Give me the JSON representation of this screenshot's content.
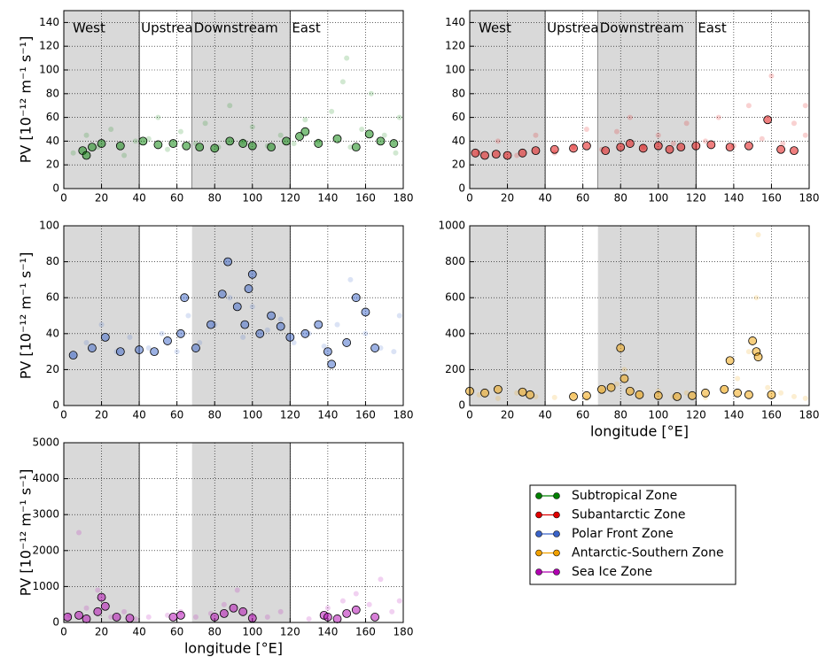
{
  "chart_data": [
    {
      "type": "scatter",
      "ylabel": "PV [10⁻¹² m⁻¹ s⁻¹]",
      "xlim": [
        0,
        180
      ],
      "ylim": [
        0,
        150
      ],
      "xticks": [
        0,
        20,
        40,
        60,
        80,
        100,
        120,
        140,
        160,
        180
      ],
      "yticks": [
        0,
        20,
        40,
        60,
        80,
        100,
        120,
        140
      ],
      "grid": true,
      "regions": [
        {
          "label": "West",
          "xlim": [
            0,
            40
          ],
          "shaded": true
        },
        {
          "label": "Upstream",
          "xlim": [
            40,
            68
          ],
          "shaded": false
        },
        {
          "label": "Downstream",
          "xlim": [
            68,
            120
          ],
          "shaded": true
        },
        {
          "label": "East",
          "xlim": [
            120,
            180
          ],
          "shaded": false
        }
      ],
      "series": [
        {
          "name": "Subtropical Zone",
          "color": "#008000",
          "x": [
            5,
            12,
            18,
            25,
            32,
            38,
            45,
            50,
            55,
            62,
            70,
            75,
            82,
            88,
            95,
            100,
            108,
            115,
            122,
            128,
            135,
            142,
            148,
            152,
            158,
            163,
            170,
            176,
            178,
            150
          ],
          "values": [
            30,
            45,
            35,
            50,
            28,
            40,
            42,
            60,
            33,
            48,
            38,
            55,
            35,
            70,
            40,
            52,
            36,
            45,
            38,
            58,
            40,
            65,
            90,
            35,
            50,
            80,
            45,
            30,
            60,
            110
          ],
          "highlight_x": [
            10,
            12,
            15,
            20,
            30,
            42,
            50,
            58,
            65,
            72,
            80,
            88,
            95,
            100,
            110,
            118,
            125,
            128,
            135,
            145,
            155,
            162,
            168,
            175
          ],
          "highlight_values": [
            32,
            28,
            35,
            38,
            36,
            40,
            37,
            38,
            36,
            35,
            34,
            40,
            38,
            36,
            35,
            40,
            44,
            48,
            38,
            42,
            35,
            46,
            40,
            38
          ]
        }
      ]
    },
    {
      "type": "scatter",
      "xlim": [
        0,
        180
      ],
      "ylim": [
        0,
        150
      ],
      "xticks": [
        0,
        20,
        40,
        60,
        80,
        100,
        120,
        140,
        160,
        180
      ],
      "yticks": [
        0,
        20,
        40,
        60,
        80,
        100,
        120,
        140
      ],
      "grid": true,
      "regions": [
        {
          "label": "West",
          "xlim": [
            0,
            40
          ],
          "shaded": true
        },
        {
          "label": "Upstream",
          "xlim": [
            40,
            68
          ],
          "shaded": false
        },
        {
          "label": "Downstream",
          "xlim": [
            68,
            120
          ],
          "shaded": true
        },
        {
          "label": "East",
          "xlim": [
            120,
            180
          ],
          "shaded": false
        }
      ],
      "series": [
        {
          "name": "Subantarctic Zone",
          "color": "#e00000",
          "x": [
            5,
            15,
            25,
            35,
            45,
            55,
            62,
            70,
            78,
            85,
            92,
            100,
            108,
            115,
            125,
            132,
            140,
            148,
            155,
            160,
            166,
            172,
            178,
            178
          ],
          "values": [
            30,
            40,
            28,
            45,
            30,
            35,
            50,
            33,
            48,
            60,
            35,
            45,
            38,
            55,
            40,
            60,
            36,
            70,
            42,
            95,
            38,
            55,
            45,
            70
          ],
          "highlight_x": [
            3,
            8,
            14,
            20,
            28,
            35,
            45,
            55,
            62,
            72,
            80,
            85,
            92,
            100,
            106,
            112,
            120,
            128,
            138,
            148,
            158,
            165,
            172
          ],
          "highlight_values": [
            30,
            28,
            29,
            28,
            30,
            32,
            33,
            34,
            36,
            32,
            35,
            38,
            34,
            36,
            33,
            35,
            36,
            37,
            35,
            36,
            58,
            33,
            32
          ]
        }
      ]
    },
    {
      "type": "scatter",
      "ylabel": "PV [10⁻¹² m⁻¹ s⁻¹]",
      "xlim": [
        0,
        180
      ],
      "ylim": [
        0,
        100
      ],
      "xticks": [
        0,
        20,
        40,
        60,
        80,
        100,
        120,
        140,
        160,
        180
      ],
      "yticks": [
        0,
        20,
        40,
        60,
        80,
        100
      ],
      "grid": true,
      "regions": [
        {
          "xlim": [
            0,
            40
          ],
          "shaded": true
        },
        {
          "xlim": [
            68,
            120
          ],
          "shaded": true
        }
      ],
      "series": [
        {
          "name": "Polar Front Zone",
          "color": "#3a63c8",
          "x": [
            5,
            12,
            20,
            28,
            35,
            45,
            52,
            60,
            66,
            72,
            80,
            88,
            95,
            100,
            108,
            115,
            122,
            130,
            138,
            145,
            152,
            160,
            168,
            175,
            178
          ],
          "values": [
            28,
            35,
            45,
            30,
            38,
            32,
            40,
            30,
            50,
            35,
            45,
            60,
            38,
            55,
            42,
            48,
            35,
            40,
            33,
            45,
            70,
            40,
            32,
            30,
            50
          ],
          "highlight_x": [
            5,
            15,
            22,
            30,
            40,
            48,
            55,
            62,
            64,
            70,
            78,
            84,
            87,
            92,
            96,
            98,
            100,
            104,
            110,
            115,
            120,
            128,
            135,
            140,
            142,
            150,
            155,
            160,
            165
          ],
          "highlight_values": [
            28,
            32,
            38,
            30,
            31,
            30,
            36,
            40,
            60,
            32,
            45,
            62,
            80,
            55,
            45,
            65,
            73,
            40,
            50,
            44,
            38,
            40,
            45,
            30,
            23,
            35,
            60,
            52,
            32
          ]
        }
      ]
    },
    {
      "type": "scatter",
      "xlabel": "longitude [°E]",
      "xlim": [
        0,
        180
      ],
      "ylim": [
        0,
        1000
      ],
      "xticks": [
        0,
        20,
        40,
        60,
        80,
        100,
        120,
        140,
        160,
        180
      ],
      "yticks": [
        0,
        200,
        400,
        600,
        800,
        1000
      ],
      "grid": true,
      "regions": [
        {
          "xlim": [
            0,
            40
          ],
          "shaded": true
        },
        {
          "xlim": [
            68,
            120
          ],
          "shaded": true
        }
      ],
      "series": [
        {
          "name": "Antarctic-Southern Zone",
          "color": "#f0a000",
          "x": [
            5,
            15,
            25,
            35,
            45,
            55,
            62,
            70,
            78,
            82,
            90,
            100,
            108,
            115,
            125,
            135,
            142,
            148,
            152,
            153,
            158,
            165,
            172,
            178
          ],
          "values": [
            60,
            40,
            70,
            50,
            45,
            60,
            40,
            80,
            120,
            200,
            60,
            80,
            50,
            70,
            45,
            90,
            150,
            300,
            600,
            950,
            100,
            70,
            50,
            40
          ],
          "highlight_x": [
            0,
            8,
            15,
            28,
            32,
            55,
            62,
            70,
            75,
            80,
            82,
            85,
            90,
            100,
            110,
            118,
            125,
            135,
            138,
            142,
            148,
            150,
            152,
            153,
            160
          ],
          "highlight_values": [
            80,
            70,
            90,
            75,
            60,
            50,
            55,
            90,
            100,
            320,
            150,
            80,
            60,
            55,
            50,
            55,
            70,
            90,
            250,
            70,
            60,
            360,
            300,
            270,
            60
          ]
        }
      ]
    },
    {
      "type": "scatter",
      "ylabel": "PV [10⁻¹² m⁻¹ s⁻¹]",
      "xlabel": "longitude [°E]",
      "xlim": [
        0,
        180
      ],
      "ylim": [
        0,
        5000
      ],
      "xticks": [
        0,
        20,
        40,
        60,
        80,
        100,
        120,
        140,
        160,
        180
      ],
      "yticks": [
        0,
        1000,
        2000,
        3000,
        4000,
        5000
      ],
      "grid": true,
      "regions": [
        {
          "xlim": [
            0,
            40
          ],
          "shaded": true
        },
        {
          "xlim": [
            68,
            120
          ],
          "shaded": true
        }
      ],
      "series": [
        {
          "name": "Sea Ice Zone",
          "color": "#b000b0",
          "x": [
            3,
            8,
            12,
            18,
            25,
            32,
            38,
            45,
            55,
            62,
            70,
            78,
            85,
            92,
            100,
            108,
            115,
            130,
            140,
            148,
            155,
            162,
            168,
            174,
            178
          ],
          "values": [
            200,
            2500,
            400,
            900,
            150,
            300,
            100,
            150,
            200,
            300,
            150,
            250,
            500,
            900,
            200,
            150,
            300,
            100,
            400,
            600,
            800,
            500,
            1200,
            300,
            600
          ],
          "highlight_x": [
            2,
            8,
            12,
            18,
            20,
            22,
            28,
            35,
            58,
            62,
            80,
            85,
            90,
            95,
            100,
            138,
            140,
            145,
            150,
            155,
            165
          ],
          "highlight_values": [
            150,
            200,
            100,
            300,
            700,
            450,
            150,
            120,
            150,
            200,
            150,
            250,
            400,
            300,
            120,
            200,
            150,
            100,
            250,
            350,
            150
          ]
        }
      ]
    }
  ]
}
